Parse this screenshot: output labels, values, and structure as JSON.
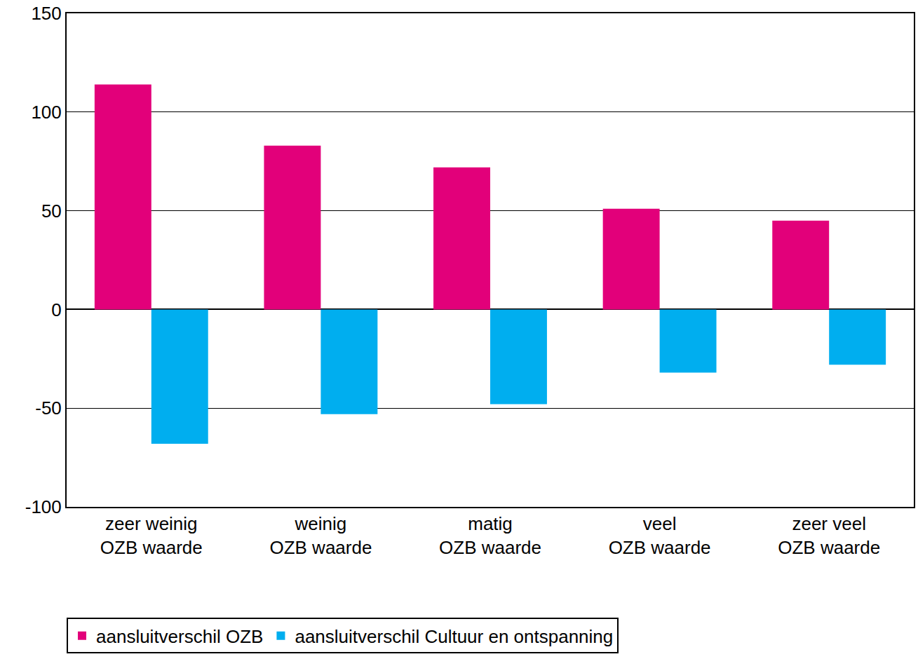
{
  "chart_data": {
    "type": "bar",
    "categories": [
      "zeer weinig\nOZB waarde",
      "weinig\nOZB waarde",
      "matig\nOZB waarde",
      "veel\nOZB waarde",
      "zeer veel\nOZB waarde"
    ],
    "series": [
      {
        "name": "aansluitverschil OZB",
        "color": "#e2007a",
        "values": [
          114,
          83,
          72,
          51,
          45
        ]
      },
      {
        "name": "aansluitverschil Cultuur en ontspanning",
        "color": "#00aeef",
        "values": [
          -68,
          -53,
          -48,
          -32,
          -28
        ]
      }
    ],
    "ylim": [
      -100,
      150
    ],
    "yticks": [
      -100,
      -50,
      0,
      50,
      100,
      150
    ],
    "grid": true,
    "legend": "bottom"
  }
}
